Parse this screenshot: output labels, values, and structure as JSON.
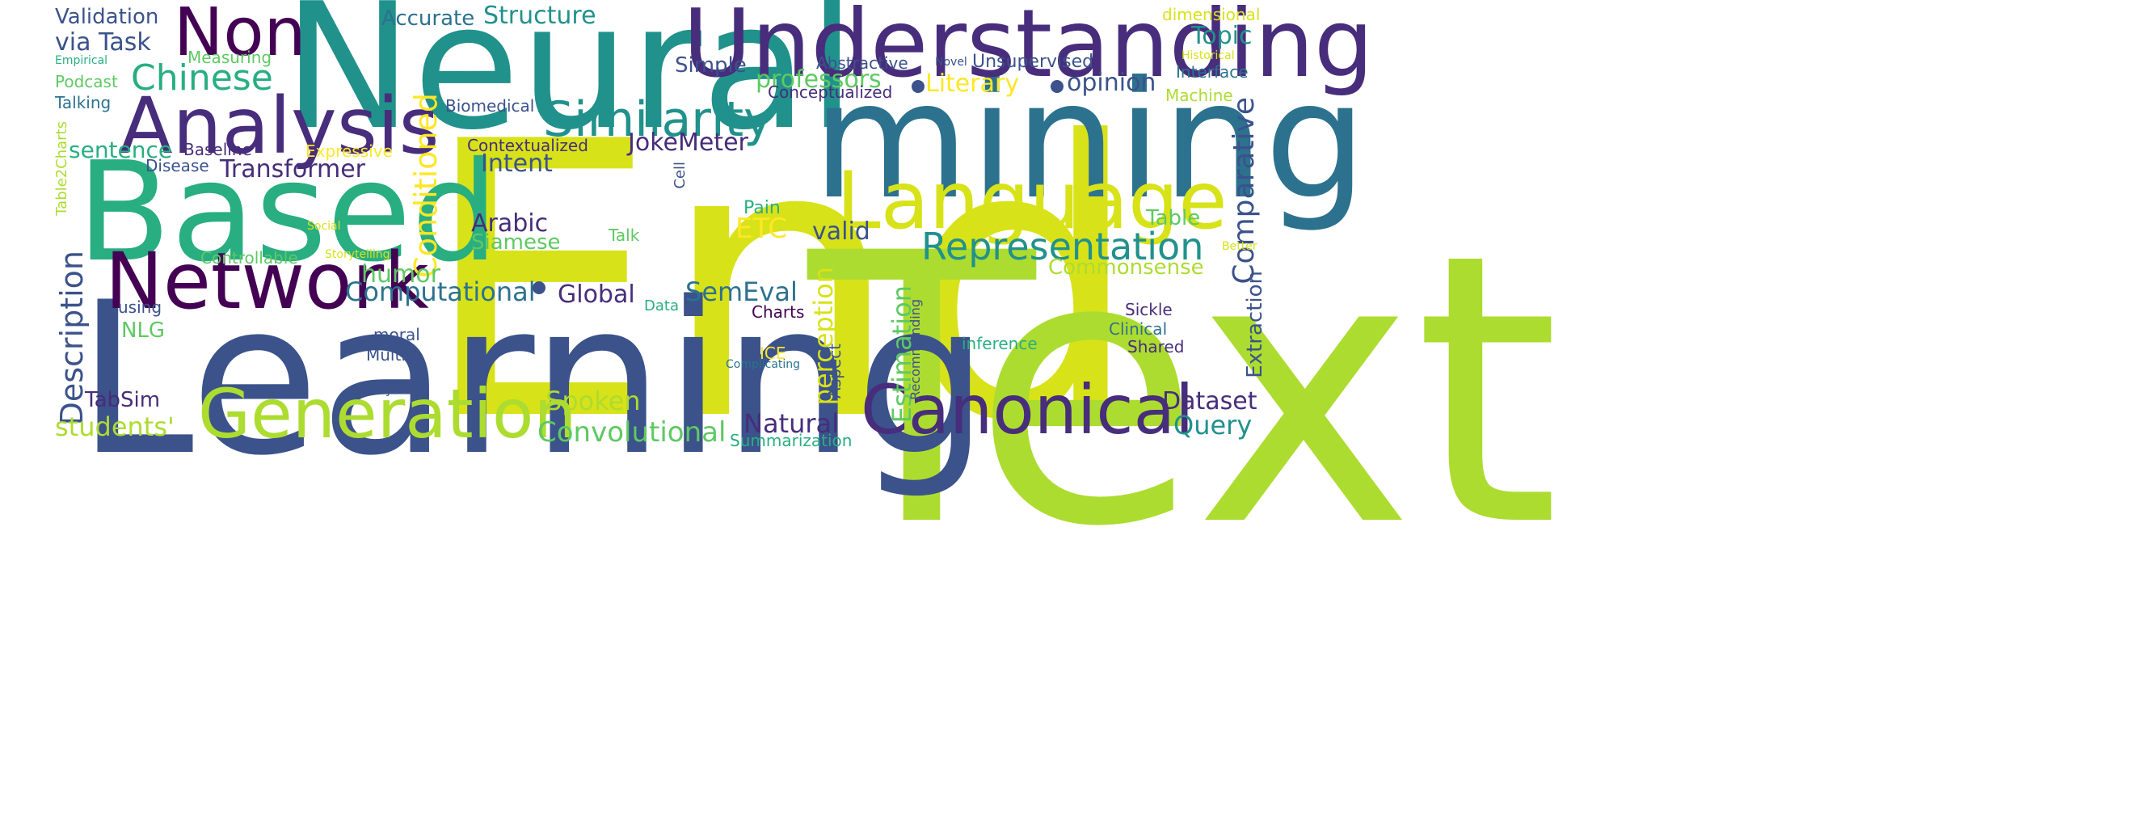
{
  "palette": {
    "purple_dark": "#440154",
    "indigo": "#472d7b",
    "blue_indigo": "#3b528b",
    "steel": "#2c728e",
    "teal": "#21918c",
    "green_teal": "#28ae80",
    "green": "#5ec962",
    "lime": "#addc30",
    "yellow": "#d8e219",
    "bright_yellow": "#fde725"
  },
  "words": {
    "end": "End",
    "text": "Text",
    "learning": "Learning",
    "neural": "Neural",
    "mining": "mining",
    "based": "Based",
    "understanding": "Understanding",
    "analysis": "Analysis",
    "language": "Language",
    "network": "Network",
    "generation": "Generation",
    "canonical": "Canonical",
    "non": "Non",
    "similarity": "Similarity",
    "representation": "Representation",
    "chinese": "Chinese",
    "conditioned": "Conditioned",
    "description": "Description",
    "comparative": "Comparative",
    "computational": "Computational",
    "convolutional": "Convolutional",
    "perception": "perception",
    "estimation": "Estimation",
    "validation": "Validation",
    "via_task": "via Task",
    "accurate": "Accurate",
    "structure": "Structure",
    "topic": "Topic",
    "dimensional": "dimensional",
    "podcast": "Podcast",
    "measuring": "Measuring",
    "empirical": "Empirical",
    "talking": "Talking",
    "simple": "Simple",
    "abstractive": "Abstractive",
    "novel": "Novel",
    "unsupervised": "Unsupervised",
    "historical": "Historical",
    "interface": "Interface",
    "professors": "professors",
    "literary": "Literary",
    "opinion": "opinion",
    "conceptualized": "Conceptualized",
    "machine": "Machine",
    "biomedical": "Biomedical",
    "sentence": "sentence",
    "baseline": "Baseline",
    "expressive": "Expressive",
    "contextualized": "Contextualized",
    "jokemeter": "JokeMeter",
    "disease": "Disease",
    "transformer": "Transformer",
    "intent": "Intent",
    "cell": "Cell",
    "table2charts": "Table2Charts",
    "social": "Social",
    "arabic": "Arabic",
    "siamese": "Siamese",
    "pain": "Pain",
    "etc": "ETC",
    "valid": "valid",
    "table": "Table",
    "talk": "Talk",
    "storytelling": "Storytelling",
    "controllable": "Controllable",
    "better": "Better",
    "humor": "humor",
    "commonsense": "Commonsense",
    "global": "Global",
    "semeval": "SemEval",
    "using": "using",
    "data": "Data",
    "charts": "Charts",
    "nlg": "NLG",
    "moral": "moral",
    "recommending": "Recommending",
    "sickle": "Sickle",
    "clinical": "Clinical",
    "extraction": "Extraction",
    "ice": "ICE",
    "inference": "inference",
    "shared": "Shared",
    "aspect": "Aspect",
    "complicating": "Complicating",
    "multi": "Multi",
    "study": "Study",
    "tabsim": "TabSim",
    "spoken": "Spoken",
    "dataset": "Dataset",
    "natural": "Natural",
    "query": "Query",
    "students": "students'",
    "summarization": "Summarization"
  }
}
